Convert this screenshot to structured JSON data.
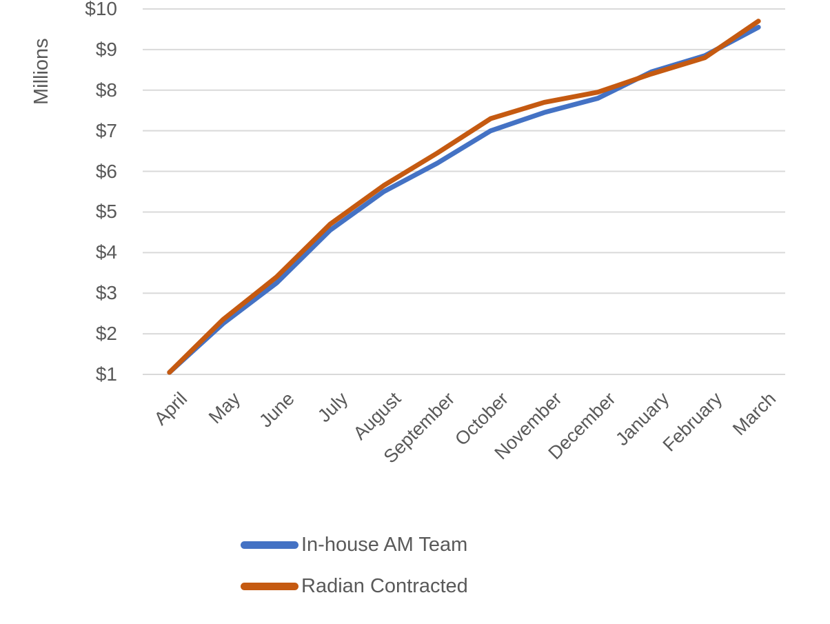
{
  "chart_data": {
    "type": "line",
    "categories": [
      "April",
      "May",
      "June",
      "July",
      "August",
      "September",
      "October",
      "November",
      "December",
      "January",
      "February",
      "March"
    ],
    "series": [
      {
        "name": "In-house AM Team",
        "color": "#4472C4",
        "values": [
          1.05,
          2.25,
          3.25,
          4.55,
          5.5,
          6.2,
          7.0,
          7.45,
          7.8,
          8.45,
          8.85,
          9.55
        ]
      },
      {
        "name": "Radian Contracted",
        "color": "#C55A11",
        "values": [
          1.05,
          2.35,
          3.4,
          4.7,
          5.65,
          6.45,
          7.3,
          7.7,
          7.95,
          8.4,
          8.8,
          9.7
        ]
      }
    ],
    "title": "",
    "xlabel": "",
    "ylabel": "Millions",
    "y_ticks": [
      "$1",
      "$2",
      "$3",
      "$4",
      "$5",
      "$6",
      "$7",
      "$8",
      "$9",
      "$10"
    ],
    "ylim": [
      1,
      10
    ],
    "grid": true,
    "gridline_color": "#D9D9D9",
    "text_color": "#595959",
    "legend_position": "bottom-left"
  }
}
